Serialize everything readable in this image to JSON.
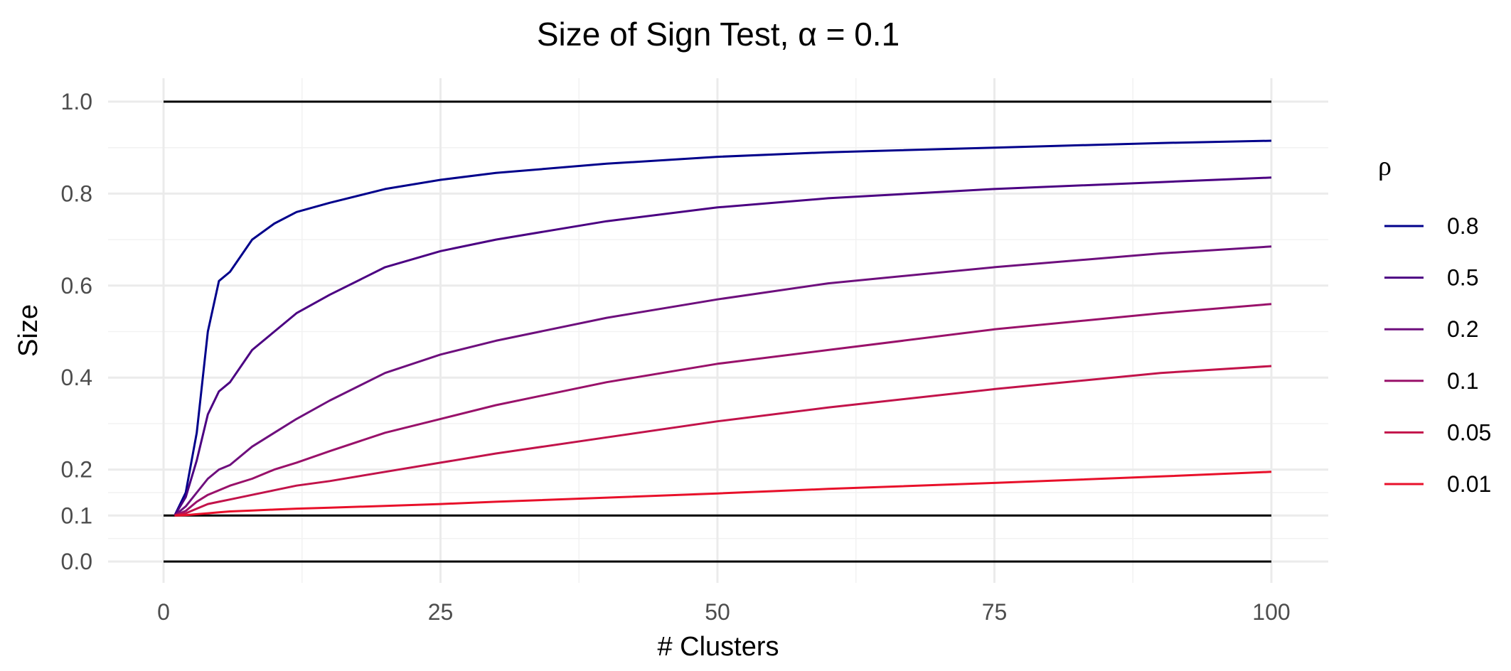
{
  "chart_data": {
    "type": "line",
    "title": "Size of Sign Test, α = 0.1",
    "xlabel": "# Clusters",
    "ylabel": "Size",
    "xlim": [
      0,
      100
    ],
    "ylim": [
      0,
      1.0
    ],
    "x_ticks": [
      "0",
      "25",
      "50",
      "75",
      "100"
    ],
    "y_ticks": [
      "0.0",
      "0.1",
      "0.2",
      "0.4",
      "0.6",
      "0.8",
      "1.0"
    ],
    "grid": true,
    "legend": {
      "title": "ρ",
      "position": "right",
      "entries": [
        "0.8",
        "0.5",
        "0.2",
        "0.1",
        "0.05",
        "0.01"
      ]
    },
    "reference_lines": [
      0.0,
      0.1,
      1.0
    ],
    "x": [
      1,
      2,
      3,
      4,
      5,
      6,
      8,
      10,
      12,
      15,
      20,
      25,
      30,
      40,
      50,
      60,
      75,
      90,
      100
    ],
    "series": [
      {
        "name": "0.8",
        "color": "#00008b",
        "values": [
          0.1,
          0.15,
          0.28,
          0.5,
          0.61,
          0.63,
          0.7,
          0.735,
          0.76,
          0.78,
          0.81,
          0.83,
          0.845,
          0.865,
          0.88,
          0.89,
          0.9,
          0.91,
          0.915
        ]
      },
      {
        "name": "0.5",
        "color": "#4b0082",
        "values": [
          0.1,
          0.14,
          0.22,
          0.32,
          0.37,
          0.39,
          0.46,
          0.5,
          0.54,
          0.58,
          0.64,
          0.675,
          0.7,
          0.74,
          0.77,
          0.79,
          0.81,
          0.825,
          0.835
        ]
      },
      {
        "name": "0.2",
        "color": "#6e0f7d",
        "values": [
          0.1,
          0.12,
          0.15,
          0.18,
          0.2,
          0.21,
          0.25,
          0.28,
          0.31,
          0.35,
          0.41,
          0.45,
          0.48,
          0.53,
          0.57,
          0.605,
          0.64,
          0.67,
          0.685
        ]
      },
      {
        "name": "0.1",
        "color": "#99116a",
        "values": [
          0.1,
          0.11,
          0.13,
          0.145,
          0.155,
          0.165,
          0.18,
          0.2,
          0.215,
          0.24,
          0.28,
          0.31,
          0.34,
          0.39,
          0.43,
          0.46,
          0.505,
          0.54,
          0.56
        ]
      },
      {
        "name": "0.05",
        "color": "#c2134a",
        "values": [
          0.1,
          0.105,
          0.115,
          0.125,
          0.13,
          0.135,
          0.145,
          0.155,
          0.165,
          0.175,
          0.195,
          0.215,
          0.235,
          0.27,
          0.305,
          0.335,
          0.375,
          0.41,
          0.425
        ]
      },
      {
        "name": "0.01",
        "color": "#e8102a",
        "values": [
          0.1,
          0.101,
          0.103,
          0.105,
          0.107,
          0.109,
          0.111,
          0.113,
          0.115,
          0.117,
          0.121,
          0.125,
          0.13,
          0.139,
          0.148,
          0.158,
          0.171,
          0.185,
          0.195
        ]
      }
    ]
  }
}
